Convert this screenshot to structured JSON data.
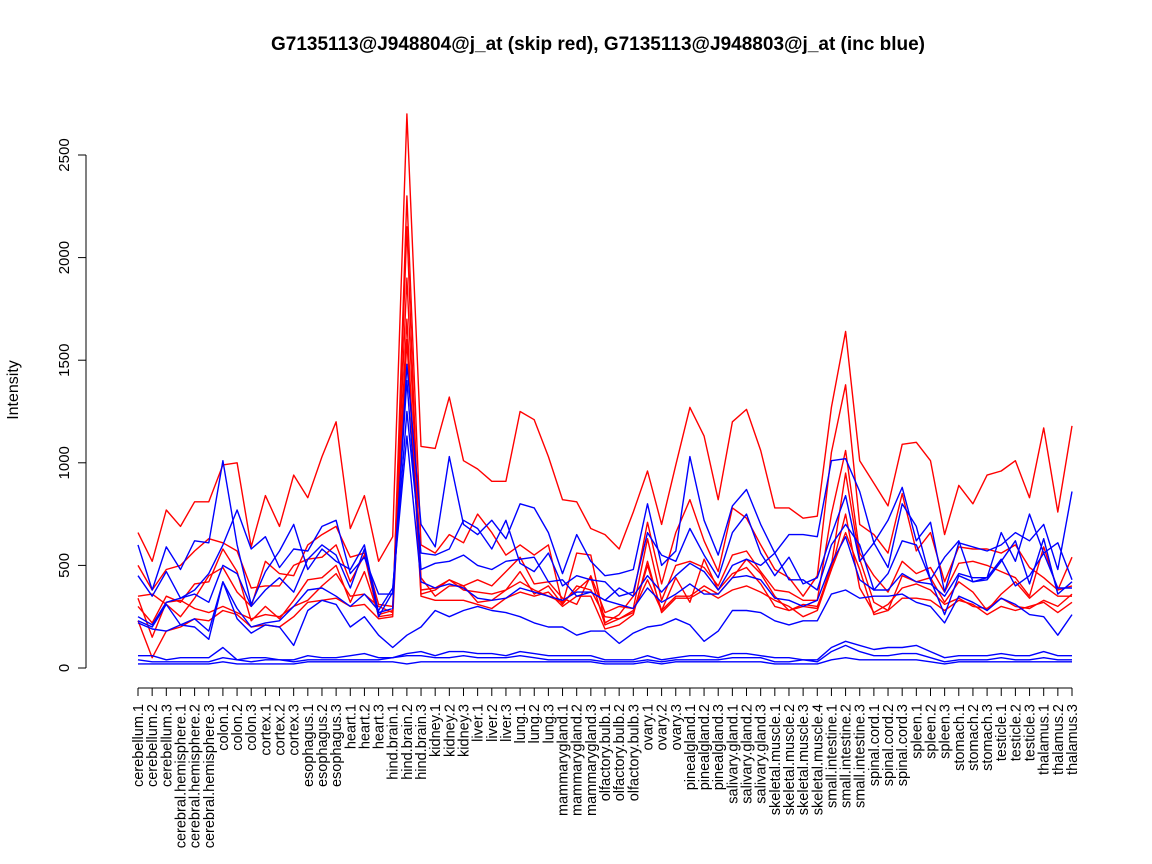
{
  "chart_data": {
    "type": "line",
    "title": "G7135113@J948804@j_at (skip red), G7135113@J948803@j_at (inc blue)",
    "xlabel": "",
    "ylabel": "Intensity",
    "ylim": [
      0,
      2500
    ],
    "yticks": [
      0,
      500,
      1000,
      1500,
      2000,
      2500
    ],
    "grid": false,
    "legend": "none",
    "colors": {
      "skip": "#ff0000",
      "inc": "#0000ff"
    },
    "categories": [
      "cerebellum.1",
      "cerebellum.2",
      "cerebellum.3",
      "cerebral.hemisphere.1",
      "cerebral.hemisphere.2",
      "cerebral.hemisphere.3",
      "colon.1",
      "colon.2",
      "colon.3",
      "cortex.1",
      "cortex.2",
      "cortex.3",
      "esophagus.1",
      "esophagus.2",
      "esophagus.3",
      "heart.1",
      "heart.2",
      "heart.3",
      "hind.brain.1",
      "hind.brain.2",
      "hind.brain.3",
      "kidney.1",
      "kidney.2",
      "kidney.3",
      "liver.1",
      "liver.2",
      "liver.3",
      "lung.1",
      "lung.2",
      "lung.3",
      "mammarygland.1",
      "mammarygland.2",
      "mammarygland.3",
      "olfactory.bulb.1",
      "olfactory.bulb.2",
      "olfactory.bulb.3",
      "ovary.1",
      "ovary.2",
      "ovary.3",
      "pinealgland.1",
      "pinealgland.2",
      "pinealgland.3",
      "salivary.gland.1",
      "salivary.gland.2",
      "salivary.gland.3",
      "skeletal.muscle.1",
      "skeletal.muscle.2",
      "skeletal.muscle.3",
      "skeletal.muscle.4",
      "small.intestine.1",
      "small.intestine.2",
      "small.intestine.3",
      "spinal.cord.1",
      "spinal.cord.2",
      "spinal.cord.3",
      "spleen.1",
      "spleen.2",
      "spleen.3",
      "stomach.1",
      "stomach.2",
      "stomach.3",
      "testicle.1",
      "testicle.2",
      "testicle.3",
      "thalamus.1",
      "thalamus.2",
      "thalamus.3"
    ],
    "series": [
      {
        "group": "skip",
        "values": [
          660,
          520,
          770,
          690,
          810,
          810,
          990,
          1000,
          590,
          840,
          690,
          940,
          830,
          1030,
          1200,
          680,
          840,
          520,
          640,
          2700,
          1080,
          1070,
          1320,
          1010,
          970,
          910,
          910,
          1250,
          1210,
          1030,
          820,
          810,
          680,
          650,
          580,
          760,
          960,
          700,
          990,
          1270,
          1130,
          820,
          1200,
          1260,
          1060,
          780,
          780,
          730,
          740,
          1270,
          1640,
          1010,
          900,
          790,
          1090,
          1100,
          1010,
          650,
          890,
          800,
          940,
          960,
          1010,
          830,
          1170,
          760,
          1180
        ]
      },
      {
        "group": "skip",
        "values": [
          500,
          380,
          480,
          500,
          570,
          630,
          610,
          570,
          390,
          400,
          400,
          500,
          530,
          540,
          600,
          420,
          550,
          250,
          260,
          2300,
          600,
          560,
          650,
          610,
          750,
          660,
          550,
          600,
          550,
          600,
          310,
          560,
          550,
          220,
          260,
          350,
          710,
          410,
          660,
          820,
          620,
          470,
          780,
          730,
          600,
          480,
          440,
          350,
          450,
          1050,
          1380,
          700,
          650,
          560,
          850,
          570,
          660,
          420,
          590,
          580,
          580,
          560,
          600,
          490,
          440,
          380,
          540
        ]
      },
      {
        "group": "skip",
        "values": [
          350,
          360,
          310,
          250,
          340,
          450,
          490,
          370,
          300,
          520,
          460,
          450,
          600,
          650,
          690,
          540,
          560,
          310,
          300,
          1900,
          440,
          350,
          400,
          400,
          430,
          400,
          470,
          540,
          410,
          420,
          340,
          310,
          450,
          270,
          300,
          290,
          630,
          330,
          500,
          520,
          490,
          400,
          550,
          570,
          470,
          380,
          370,
          330,
          330,
          750,
          1060,
          560,
          450,
          370,
          520,
          460,
          490,
          370,
          510,
          520,
          500,
          470,
          440,
          350,
          590,
          380,
          400
        ]
      },
      {
        "group": "skip",
        "values": [
          300,
          220,
          350,
          320,
          410,
          420,
          580,
          470,
          230,
          300,
          240,
          330,
          430,
          440,
          500,
          320,
          470,
          260,
          280,
          1700,
          360,
          380,
          430,
          380,
          370,
          360,
          380,
          470,
          360,
          400,
          310,
          400,
          380,
          250,
          240,
          280,
          430,
          280,
          440,
          320,
          530,
          380,
          460,
          490,
          410,
          300,
          280,
          300,
          290,
          500,
          950,
          530,
          320,
          280,
          450,
          420,
          440,
          320,
          420,
          370,
          280,
          360,
          420,
          340,
          400,
          350,
          350
        ]
      },
      {
        "group": "skip",
        "values": [
          340,
          150,
          320,
          330,
          290,
          270,
          300,
          270,
          240,
          260,
          250,
          300,
          330,
          400,
          460,
          350,
          360,
          300,
          270,
          2150,
          380,
          390,
          430,
          400,
          320,
          330,
          380,
          420,
          380,
          350,
          320,
          380,
          440,
          210,
          240,
          270,
          500,
          280,
          350,
          350,
          400,
          360,
          440,
          530,
          460,
          350,
          280,
          310,
          300,
          480,
          750,
          390,
          270,
          310,
          390,
          410,
          380,
          310,
          340,
          300,
          290,
          340,
          300,
          290,
          330,
          300,
          360
        ]
      },
      {
        "group": "skip",
        "values": [
          230,
          50,
          180,
          200,
          240,
          230,
          280,
          260,
          200,
          210,
          200,
          250,
          320,
          330,
          340,
          300,
          310,
          240,
          250,
          1600,
          350,
          330,
          330,
          330,
          310,
          290,
          340,
          370,
          350,
          370,
          300,
          350,
          350,
          190,
          210,
          260,
          520,
          270,
          340,
          340,
          380,
          340,
          380,
          400,
          370,
          330,
          300,
          250,
          280,
          480,
          660,
          480,
          260,
          280,
          340,
          340,
          330,
          280,
          330,
          310,
          260,
          300,
          280,
          300,
          320,
          270,
          320
        ]
      },
      {
        "group": "inc",
        "values": [
          600,
          380,
          590,
          480,
          620,
          610,
          1010,
          600,
          310,
          470,
          570,
          700,
          480,
          580,
          520,
          480,
          600,
          270,
          290,
          1480,
          700,
          590,
          1030,
          700,
          650,
          720,
          630,
          800,
          780,
          660,
          460,
          650,
          520,
          450,
          460,
          480,
          800,
          500,
          570,
          1030,
          720,
          550,
          790,
          870,
          700,
          560,
          650,
          650,
          640,
          1010,
          1020,
          860,
          610,
          720,
          880,
          620,
          710,
          370,
          610,
          590,
          570,
          600,
          660,
          620,
          700,
          480,
          860
        ]
      },
      {
        "group": "inc",
        "values": [
          450,
          350,
          470,
          340,
          380,
          460,
          600,
          770,
          580,
          640,
          490,
          580,
          570,
          690,
          720,
          460,
          540,
          360,
          360,
          1250,
          560,
          550,
          580,
          720,
          680,
          580,
          720,
          510,
          470,
          560,
          400,
          450,
          430,
          420,
          350,
          370,
          660,
          550,
          520,
          680,
          550,
          440,
          660,
          750,
          560,
          450,
          540,
          410,
          440,
          650,
          840,
          520,
          610,
          490,
          800,
          690,
          430,
          540,
          620,
          420,
          440,
          660,
          520,
          750,
          560,
          610,
          430
        ]
      },
      {
        "group": "inc",
        "values": [
          250,
          210,
          320,
          340,
          360,
          320,
          500,
          460,
          300,
          380,
          440,
          370,
          530,
          600,
          550,
          390,
          580,
          250,
          370,
          1400,
          480,
          510,
          520,
          550,
          500,
          480,
          520,
          530,
          540,
          420,
          430,
          350,
          370,
          330,
          390,
          350,
          450,
          370,
          450,
          510,
          470,
          380,
          500,
          530,
          500,
          560,
          430,
          430,
          380,
          600,
          700,
          600,
          380,
          460,
          620,
          600,
          430,
          260,
          450,
          420,
          430,
          520,
          620,
          410,
          630,
          360,
          420
        ]
      },
      {
        "group": "inc",
        "values": [
          230,
          200,
          310,
          210,
          240,
          180,
          420,
          290,
          200,
          220,
          230,
          300,
          380,
          390,
          350,
          300,
          360,
          280,
          390,
          1130,
          420,
          390,
          410,
          390,
          340,
          330,
          340,
          390,
          370,
          350,
          330,
          370,
          370,
          330,
          310,
          290,
          390,
          320,
          360,
          410,
          360,
          360,
          440,
          450,
          430,
          340,
          330,
          300,
          330,
          510,
          640,
          430,
          380,
          380,
          460,
          420,
          410,
          350,
          460,
          440,
          440,
          530,
          400,
          450,
          560,
          390,
          390
        ]
      },
      {
        "group": "inc",
        "values": [
          220,
          190,
          180,
          210,
          200,
          140,
          420,
          240,
          170,
          210,
          200,
          110,
          280,
          330,
          310,
          200,
          250,
          160,
          100,
          160,
          200,
          280,
          250,
          280,
          300,
          280,
          270,
          250,
          220,
          200,
          200,
          160,
          180,
          180,
          120,
          170,
          200,
          210,
          240,
          210,
          130,
          180,
          280,
          280,
          270,
          230,
          210,
          230,
          230,
          360,
          380,
          340,
          350,
          350,
          360,
          320,
          300,
          220,
          350,
          320,
          280,
          340,
          310,
          260,
          250,
          160,
          260
        ]
      },
      {
        "group": "inc",
        "values": [
          60,
          60,
          40,
          50,
          50,
          50,
          100,
          40,
          50,
          50,
          40,
          40,
          60,
          50,
          50,
          60,
          70,
          50,
          50,
          70,
          80,
          60,
          80,
          80,
          70,
          70,
          60,
          80,
          70,
          60,
          60,
          60,
          60,
          40,
          40,
          40,
          60,
          40,
          50,
          60,
          60,
          50,
          70,
          70,
          60,
          50,
          50,
          40,
          40,
          100,
          130,
          110,
          90,
          100,
          100,
          110,
          80,
          50,
          60,
          60,
          60,
          70,
          60,
          60,
          80,
          60,
          60
        ]
      },
      {
        "group": "inc",
        "values": [
          40,
          30,
          30,
          30,
          30,
          30,
          50,
          40,
          30,
          40,
          40,
          30,
          40,
          40,
          40,
          40,
          40,
          40,
          50,
          60,
          60,
          50,
          50,
          60,
          50,
          50,
          50,
          60,
          50,
          40,
          40,
          40,
          40,
          30,
          30,
          30,
          40,
          30,
          40,
          40,
          40,
          40,
          50,
          50,
          50,
          30,
          30,
          40,
          30,
          80,
          110,
          80,
          60,
          60,
          70,
          70,
          50,
          30,
          40,
          40,
          40,
          50,
          40,
          40,
          50,
          40,
          40
        ]
      },
      {
        "group": "inc",
        "values": [
          20,
          20,
          20,
          20,
          20,
          20,
          30,
          20,
          20,
          20,
          20,
          20,
          30,
          30,
          30,
          30,
          30,
          30,
          30,
          20,
          30,
          30,
          30,
          30,
          30,
          30,
          30,
          30,
          30,
          30,
          30,
          30,
          30,
          20,
          20,
          20,
          30,
          20,
          30,
          30,
          30,
          30,
          30,
          30,
          30,
          20,
          20,
          20,
          20,
          40,
          50,
          40,
          40,
          40,
          40,
          40,
          30,
          20,
          30,
          30,
          30,
          30,
          30,
          30,
          30,
          30,
          30
        ]
      }
    ]
  }
}
